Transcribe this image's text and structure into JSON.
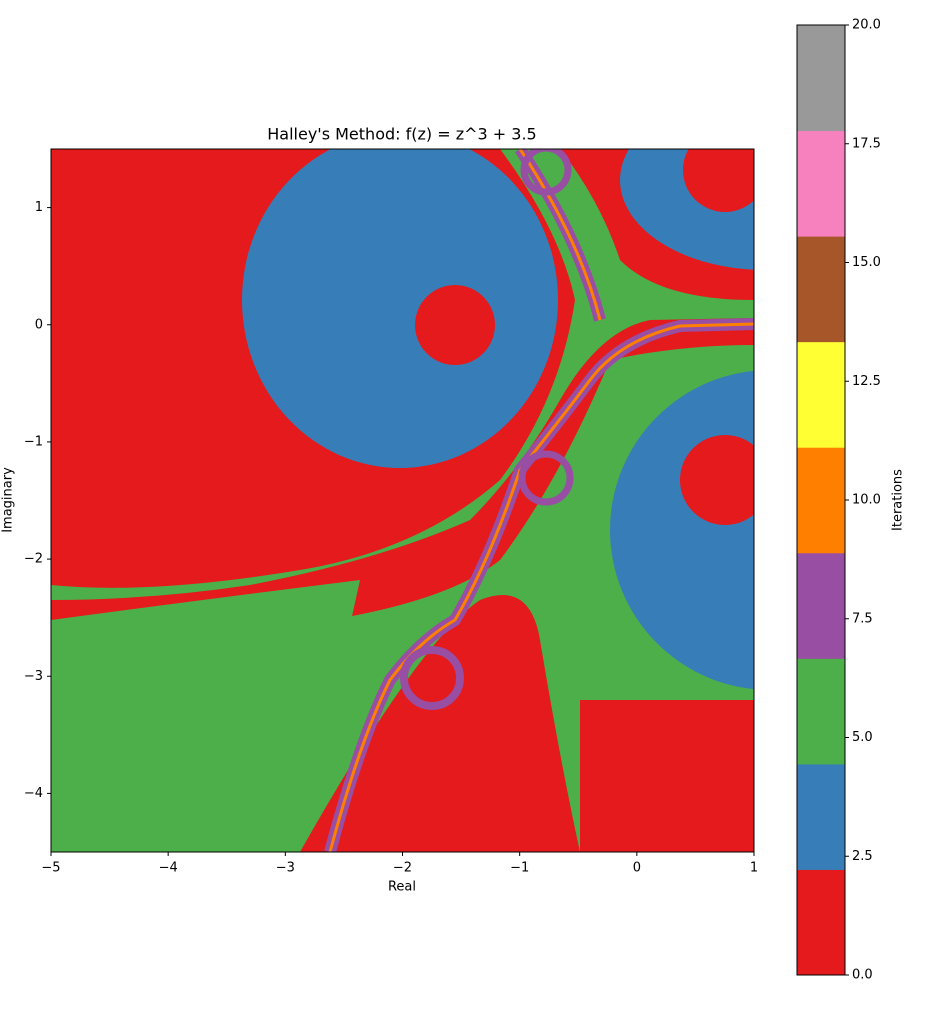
{
  "chart_data": {
    "type": "heatmap",
    "title": "Halley's Method: f(z) = z^3 + 3.5",
    "xlabel": "Real",
    "ylabel": "Imaginary",
    "xlim": [
      -5,
      1
    ],
    "ylim": [
      -4.5,
      1.5
    ],
    "xticks": [
      {
        "value": -5,
        "label": "−5"
      },
      {
        "value": -4,
        "label": "−4"
      },
      {
        "value": -3,
        "label": "−3"
      },
      {
        "value": -2,
        "label": "−2"
      },
      {
        "value": -1,
        "label": "−1"
      },
      0,
      1
    ],
    "yticks": [
      {
        "value": -4,
        "label": "−4"
      },
      {
        "value": -3,
        "label": "−3"
      },
      {
        "value": -2,
        "label": "−2"
      },
      {
        "value": -1,
        "label": "−1"
      },
      0,
      1
    ],
    "colorbar": {
      "label": "Iterations",
      "lim": [
        0,
        20
      ],
      "ticks": [
        {
          "value": 0,
          "label": "0.0"
        },
        {
          "value": 2.5,
          "label": "2.5"
        },
        {
          "value": 5,
          "label": "5.0"
        },
        {
          "value": 7.5,
          "label": "7.5"
        },
        {
          "value": 10,
          "label": "10.0"
        },
        {
          "value": 12.5,
          "label": "12.5"
        },
        {
          "value": 15,
          "label": "15.0"
        },
        {
          "value": 17.5,
          "label": "17.5"
        },
        {
          "value": 20,
          "label": "20.0"
        }
      ],
      "colors": [
        "#e41a1c",
        "#377eb8",
        "#4daf4a",
        "#984ea3",
        "#ff7f00",
        "#ffff33",
        "#a65628",
        "#f781bf",
        "#999999"
      ]
    }
  }
}
